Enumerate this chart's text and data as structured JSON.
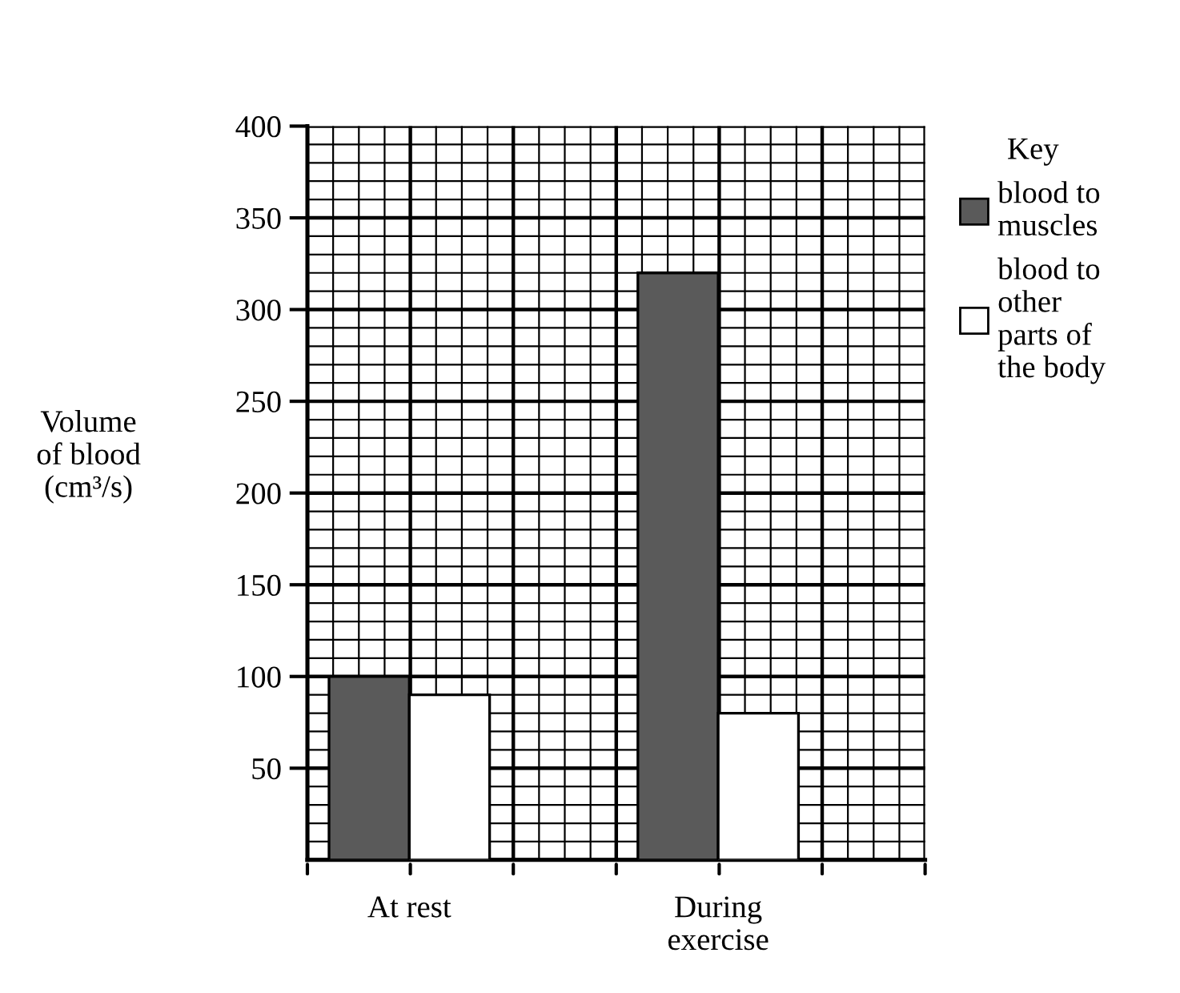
{
  "chart_data": {
    "type": "bar",
    "ylabel": "Volume\nof blood\n(cm³/s)",
    "legend_title": "Key",
    "categories": [
      "At rest",
      "During\nexercise"
    ],
    "series": [
      {
        "name": "blood to\nmuscles",
        "color": "#5a5a5a",
        "values": [
          100,
          320
        ]
      },
      {
        "name": "blood to\nother\nparts of\nthe body",
        "color": "#ffffff",
        "values": [
          90,
          80
        ]
      }
    ],
    "ylim": [
      0,
      400
    ],
    "yticks": [
      50,
      100,
      150,
      200,
      250,
      300,
      350,
      400
    ],
    "grid": true,
    "legend": "right"
  }
}
